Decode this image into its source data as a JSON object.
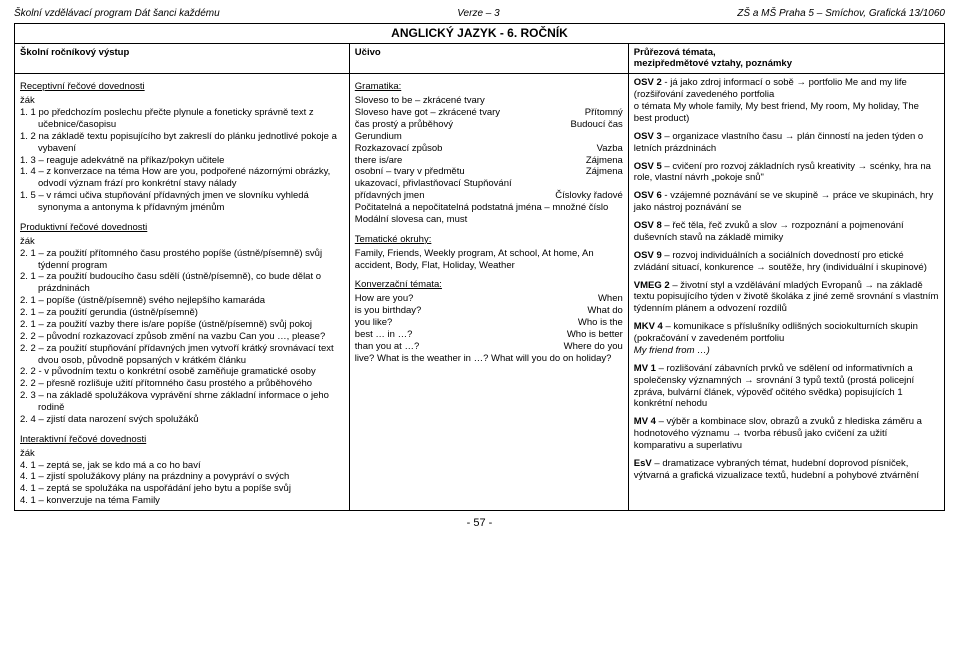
{
  "header": {
    "left": "Školní vzdělávací program Dát šanci každému",
    "center": "Verze – 3",
    "right": "ZŠ a MŠ Praha 5 – Smíchov, Grafická 13/1060"
  },
  "title": "ANGLICKÝ JAZYK - 6. ROČNÍK",
  "columns": {
    "c1": "Školní ročníkový výstup",
    "c2": "Učivo",
    "c3": "Průřezová témata,\nmezipředmětové vztahy, poznámky"
  },
  "col1": {
    "h1": "Receptivní řečové dovednosti",
    "zak": "žák",
    "r1": "1. 1 po předchozím poslechu přečte plynule a foneticky správně text z učebnice/časopisu",
    "r2": "1. 2 na základě textu popisujícího byt zakreslí do plánku jednotlivé pokoje a vybavení",
    "r3": "1. 3 – reaguje adekvátně na příkaz/pokyn učitele",
    "r4": "1. 4 – z konverzace na téma How are you, podpořené názornými obrázky, odvodí význam frází pro konkrétní stavy nálady",
    "r5": "1. 5 – v rámci učiva stupňování přídavných jmen ve slovníku vyhledá synonyma a antonyma k přídavným jménům",
    "h2": "Produktivní řečové dovednosti",
    "p1": "2. 1 – za použití přítomného času prostého popíše (ústně/písemně) svůj týdenní program",
    "p2": "2. 1 – za použití budoucího času sdělí (ústně/písemně), co bude dělat o prázdninách",
    "p3": "2. 1 – popíše (ústně/písemně) svého nejlepšího kamaráda",
    "p4": "2. 1 – za použití gerundia (ústně/písemně)",
    "p5": "2. 1 – za použití vazby there is/are popíše (ústně/písemně) svůj pokoj",
    "p6": "2. 2 – původní rozkazovací způsob změní na vazbu Can you …, please?",
    "p7": "2. 2 – za použití stupňování přídavných jmen vytvoří krátký srovnávací text dvou osob, původně popsaných v krátkém článku",
    "p8": "2. 2 - v původním textu o konkrétní osobě zaměňuje gramatické osoby",
    "p9": "2. 2 – přesně rozlišuje užití přítomného času prostého a průběhového",
    "p10": "2. 3 – na základě spolužákova vyprávění shrne základní informace o jeho rodině",
    "p11": "2. 4 – zjistí data narození svých spolužáků",
    "h3": "Interaktivní řečové dovednosti",
    "i1": "4. 1 – zeptá se, jak se kdo má a co ho baví",
    "i2": "4. 1 – zjistí spolužákovy plány na prázdniny a povypráví o svých",
    "i3": "4. 1 – zeptá se spolužáka na uspořádání jeho bytu a popíše svůj",
    "i4": "4. 1 – konverzuje na téma Family"
  },
  "col2": {
    "h1": "Gramatika:",
    "g1a": "Sloveso to be – zkrácené tvary",
    "g2l": "Sloveso have got – zkrácené tvary",
    "g2r": "Přítomný",
    "g3l": "čas prostý a průběhový",
    "g3r": "Budoucí čas",
    "g4": "Gerundium",
    "g5l": "Rozkazovací způsob",
    "g5r": "Vazba",
    "g6l": "there is/are",
    "g6r": "Zájmena",
    "g7l": "osobní – tvary v předmětu",
    "g7r": "Zájmena",
    "g8": "ukazovací, přivlastňovací  Stupňování",
    "g9l": "přídavných jmen",
    "g9r": "Číslovky řadové",
    "g10": "Počitatelná a nepočitatelná podstatná jména   – množné číslo",
    "g11": "Modální slovesa can, must",
    "h2": "Tematické okruhy:",
    "t1": "Family, Friends, Weekly program, At school,  At home, An accident, Body, Flat, Holiday, Weather",
    "h3": "Konverzační témata:",
    "k1l": "How are you?",
    "k1r": "When",
    "k2l": "is you birthday?",
    "k2r": "What do",
    "k3l": "you like?",
    "k3r": "Who is the",
    "k4l": "best … in …?",
    "k4r": "Who is better",
    "k5l": "than you at …?",
    "k5r": "Where do you",
    "k6": "live?  What is the weather in …?  What will you do on holiday?"
  },
  "col3": {
    "osv2a": "OSV 2 -  já jako zdroj informací o sobě → portfolio Me and my life (rozšiřování zavedeného portfolia",
    "osv2b": "o témata My whole family, My best friend, My room, My holiday, The best product)",
    "osv3": "OSV 3 – organizace vlastního času → plán činností na jeden týden o letních prázdninách",
    "osv5": "OSV 5 – cvičení pro rozvoj základních rysů kreativity → scénky, hra na role, vlastní návrh „pokoje snů\"",
    "osv6": "OSV 6 - vzájemné poznávání se ve skupině → práce ve skupinách, hry jako nástroj poznávání se",
    "osv8": "OSV 8 – řeč těla, řeč zvuků a slov → rozpoznání a pojmenování duševních stavů na základě mimiky",
    "osv9": "OSV 9 – rozvoj individuálních a sociálních dovedností pro etické zvládání situací, konkurence → soutěže, hry (individuální i skupinové)",
    "vmeg2": "VMEG 2 – životní styl a vzdělávání mladých Evropanů → na základě textu popisujícího týden v životě školáka z jiné země srovnání s vlastním týdenním plánem a odvození rozdílů",
    "mkv4a": "MKV 4 – komunikace s příslušníky odlišných sociokulturních skupin (pokračování v zavedeném portfoliu",
    "mkv4b": "My friend from …)",
    "mv1": "MV 1 – rozlišování zábavních prvků ve sdělení od informativních a společensky významných → srovnání 3 typů textů (prostá policejní zpráva, bulvární článek, výpověď očitého svědka) popisujících 1 konkrétní nehodu",
    "mv4": "MV 4 – výběr a kombinace slov, obrazů a zvuků z hlediska záměru a hodnotového významu → tvorba rébusů jako cvičení za užití komparativu a superlativu",
    "esv": "EsV – dramatizace vybraných témat, hudební doprovod písniček, výtvarná a grafická vizualizace textů, hudební a pohybové ztvárnění"
  },
  "footer": "- 57 -"
}
